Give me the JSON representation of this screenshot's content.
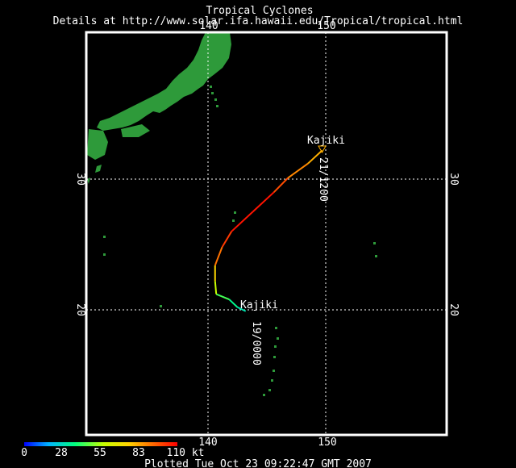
{
  "header": {
    "title": "Tropical Cyclones",
    "details": "Details at http://www.solar.ifa.hawaii.edu/Tropical/tropical.html"
  },
  "map": {
    "lon_min": 130,
    "lon_max": 150,
    "lon_extent_east": 160,
    "lat_min": 10.25,
    "lat_max": 41.5,
    "grid_lons": [
      140,
      150
    ],
    "grid_lats": [
      20,
      30
    ],
    "lon_tick_labels": [
      "140",
      "150"
    ],
    "lat_tick_labels": [
      "20",
      "30"
    ],
    "land_color": "#2e9a3a",
    "grid_color": "#ffffff",
    "frame_color": "#ffffff"
  },
  "storm": {
    "name_start": "Kajiki",
    "name_end": "Kajiki",
    "start_time_label": "19/0000",
    "end_time_label": "21/1200",
    "track": [
      {
        "lon": 143.2,
        "lat": 19.9,
        "kt": 40
      },
      {
        "lon": 142.5,
        "lat": 20.2,
        "kt": 50
      },
      {
        "lon": 141.8,
        "lat": 20.8,
        "kt": 55
      },
      {
        "lon": 140.7,
        "lat": 21.2,
        "kt": 65
      },
      {
        "lon": 140.6,
        "lat": 22.2,
        "kt": 75
      },
      {
        "lon": 140.6,
        "lat": 23.4,
        "kt": 90
      },
      {
        "lon": 141.2,
        "lat": 24.8,
        "kt": 100
      },
      {
        "lon": 142.0,
        "lat": 26.0,
        "kt": 105
      },
      {
        "lon": 143.8,
        "lat": 27.5,
        "kt": 110
      },
      {
        "lon": 145.6,
        "lat": 29.0,
        "kt": 105
      },
      {
        "lon": 146.8,
        "lat": 30.1,
        "kt": 95
      },
      {
        "lon": 148.5,
        "lat": 31.2,
        "kt": 90
      },
      {
        "lon": 149.7,
        "lat": 32.2,
        "kt": 85
      }
    ]
  },
  "legend": {
    "ticks": [
      "0",
      "28",
      "55",
      "83",
      "110 kt"
    ],
    "colors": [
      "#0000ff",
      "#00b4ff",
      "#00ff7f",
      "#c8ff00",
      "#ffd400",
      "#ff6a00",
      "#ff0000"
    ]
  },
  "footer": {
    "plotted": "Plotted Tue Oct 23 09:22:47 GMT 2007"
  }
}
